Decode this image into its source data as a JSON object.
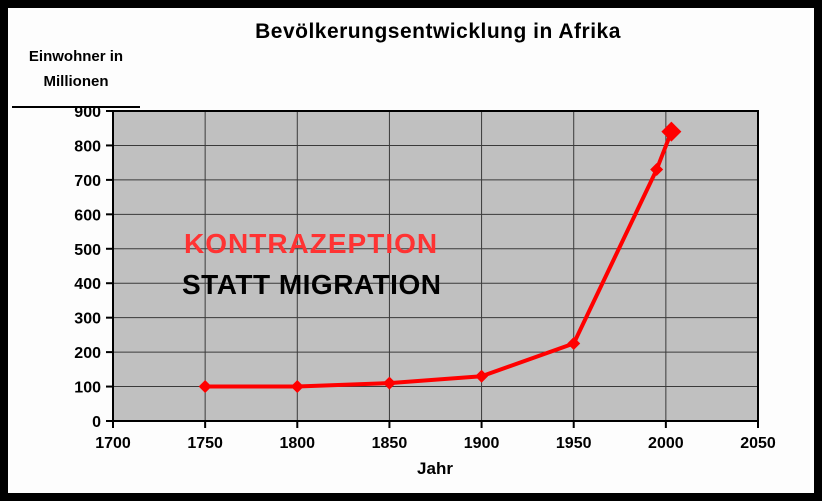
{
  "overlay": {
    "line1": {
      "text": "KONTRAZEPTION",
      "color": "#ff3333"
    },
    "line2": {
      "text": "STATT MIGRATION",
      "color": "#000000"
    }
  },
  "chart_data": {
    "type": "line",
    "title": "Bevölkerungsentwicklung in Afrika",
    "xlabel": "Jahr",
    "ylabel_line1": "Einwohner in",
    "ylabel_line2": "Millionen",
    "xlim": [
      1700,
      2050
    ],
    "ylim": [
      0,
      900
    ],
    "x_ticks": [
      1700,
      1750,
      1800,
      1850,
      1900,
      1950,
      2000,
      2050
    ],
    "y_ticks": [
      0,
      100,
      200,
      300,
      400,
      500,
      600,
      700,
      800,
      900
    ],
    "grid": true,
    "plot_bg": "#c0c0c0",
    "grid_color": "#3a3a3a",
    "series": [
      {
        "color": "#ff0000",
        "points": [
          [
            1750,
            100
          ],
          [
            1800,
            100
          ],
          [
            1850,
            110
          ],
          [
            1900,
            130
          ],
          [
            1950,
            225
          ],
          [
            1995,
            730
          ],
          [
            2003,
            840
          ]
        ]
      }
    ],
    "legend": "none"
  }
}
